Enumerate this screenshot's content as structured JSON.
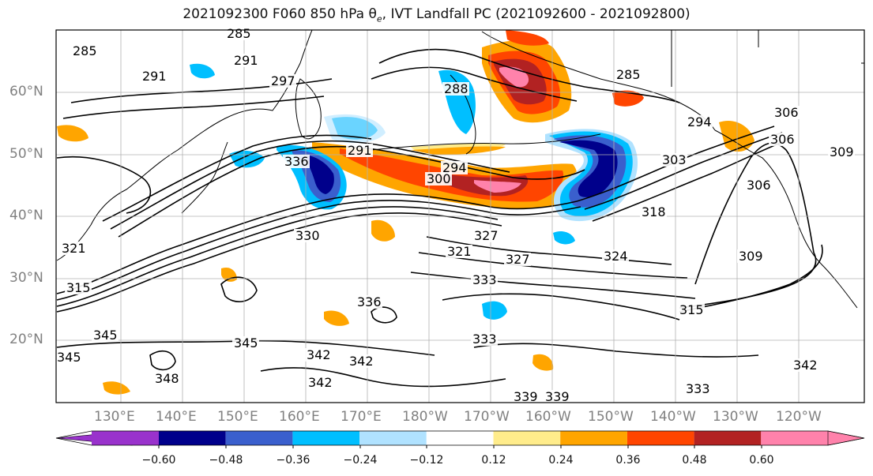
{
  "title": {
    "main": "2021092300 F060 850 hPa θ",
    "sub": "e",
    "rest": ", IVT Landfall PC (2021092600 - 2021092800)"
  },
  "map": {
    "projection": "cylindrical",
    "lon_range": "120°E to 115°W",
    "lat_range": "10°N to 70°N",
    "grid": true,
    "coastline_color": "#000000",
    "contour_color": "#000000",
    "lat_labels": [
      "20°N",
      "30°N",
      "40°N",
      "50°N",
      "60°N"
    ],
    "lon_labels": [
      "130°E",
      "140°E",
      "150°E",
      "160°E",
      "170°E",
      "180°W",
      "170°W",
      "160°W",
      "150°W",
      "140°W",
      "130°W",
      "120°W"
    ]
  },
  "contour_labels": [
    "285",
    "285",
    "291",
    "297",
    "291",
    "288",
    "285",
    "294",
    "291",
    "294",
    "300",
    "303",
    "306",
    "306",
    "309",
    "306",
    "309",
    "315",
    "318",
    "321",
    "327",
    "327",
    "324",
    "321",
    "330",
    "333",
    "333",
    "336",
    "336",
    "339",
    "339",
    "342",
    "342",
    "342",
    "342",
    "345",
    "345",
    "345",
    "348",
    "315",
    "333"
  ],
  "colorbar": {
    "colors": [
      "#9932cc",
      "#00008b",
      "#3a5fcd",
      "#00bfff",
      "#b0e2ff",
      "#ffffff",
      "#ffec8b",
      "#ffa500",
      "#ff4500",
      "#b22222",
      "#ff82ab"
    ],
    "tick_labels": [
      "−0.60",
      "−0.48",
      "−0.36",
      "−0.24",
      "−0.12",
      "0.12",
      "0.24",
      "0.36",
      "0.48",
      "0.60"
    ]
  }
}
